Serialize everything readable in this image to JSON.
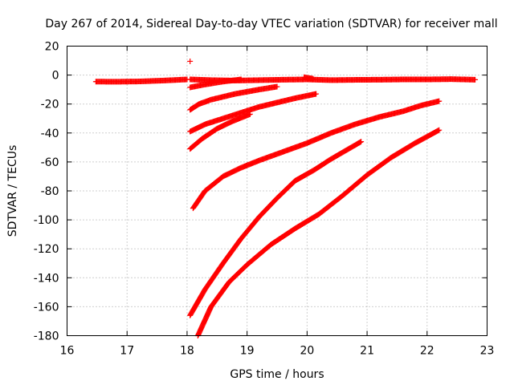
{
  "chart_data": {
    "type": "scatter",
    "title": "Day 267 of 2014, Sidereal Day-to-day VTEC variation (SDTVAR) for receiver mall",
    "xlabel": "GPS time / hours",
    "ylabel": "SDTVAR / TECUs",
    "xlim": [
      16,
      23
    ],
    "ylim": [
      -180,
      20
    ],
    "xticks": [
      "16",
      "17",
      "18",
      "19",
      "20",
      "21",
      "22",
      "23"
    ],
    "yticks": [
      "20",
      "0",
      "-20",
      "-40",
      "-60",
      "-80",
      "-100",
      "-120",
      "-140",
      "-160",
      "-180"
    ],
    "grid": true,
    "marker_color": "#ff0000",
    "series": [
      {
        "x": [
          16.48,
          16.8,
          17.2,
          17.6,
          18.0
        ],
        "y": [
          -4.5,
          -4.6,
          -4.4,
          -3.8,
          -3.0
        ]
      },
      {
        "x": [
          18.05
        ],
        "y": [
          9.5
        ]
      },
      {
        "x": [
          18.05,
          18.4,
          18.8,
          19.2,
          19.6,
          20.0,
          20.4,
          20.8,
          21.2,
          21.6,
          22.0,
          22.4,
          22.8
        ],
        "y": [
          -3.0,
          -3.5,
          -3.8,
          -3.5,
          -3.2,
          -3.0,
          -3.5,
          -3.3,
          -3.2,
          -3.0,
          -3.0,
          -2.8,
          -3.2
        ]
      },
      {
        "x": [
          18.05,
          18.3,
          18.6,
          18.9
        ],
        "y": [
          -8.5,
          -6.5,
          -4.5,
          -3.0
        ]
      },
      {
        "x": [
          19.95,
          20.1
        ],
        "y": [
          -1.5,
          -2.5
        ]
      },
      {
        "x": [
          18.05,
          18.2,
          18.4,
          18.6,
          18.8,
          19.0,
          19.2,
          19.5
        ],
        "y": [
          -24,
          -20,
          -17,
          -15,
          -13,
          -11.5,
          -10,
          -8
        ]
      },
      {
        "x": [
          18.05,
          18.3,
          18.6,
          18.9,
          19.2,
          19.5,
          19.8,
          20.15
        ],
        "y": [
          -39,
          -34,
          -30,
          -26,
          -22,
          -19,
          -16,
          -13
        ]
      },
      {
        "x": [
          18.05,
          18.25,
          18.5,
          18.75,
          19.05
        ],
        "y": [
          -51,
          -44,
          -37,
          -32,
          -27
        ]
      },
      {
        "x": [
          18.1,
          18.3,
          18.6,
          18.9,
          19.2,
          19.6,
          20.0,
          20.4,
          20.8,
          21.2,
          21.6,
          21.9,
          22.2
        ],
        "y": [
          -92,
          -80,
          -70,
          -64,
          -59,
          -53,
          -47,
          -40,
          -34,
          -29,
          -25,
          -21,
          -18
        ]
      },
      {
        "x": [
          18.05,
          18.3,
          18.6,
          18.9,
          19.2,
          19.5,
          19.8,
          20.1,
          20.4,
          20.65,
          20.9
        ],
        "y": [
          -166,
          -148,
          -130,
          -113,
          -98,
          -85,
          -73,
          -66,
          -58,
          -52,
          -46
        ]
      },
      {
        "x": [
          18.18,
          18.4,
          18.7,
          19.0,
          19.4,
          19.8,
          20.2,
          20.6,
          21.0,
          21.4,
          21.8,
          22.2
        ],
        "y": [
          -180,
          -160,
          -143,
          -131,
          -117,
          -106,
          -96,
          -83,
          -69,
          -57,
          -47,
          -38
        ]
      }
    ]
  }
}
